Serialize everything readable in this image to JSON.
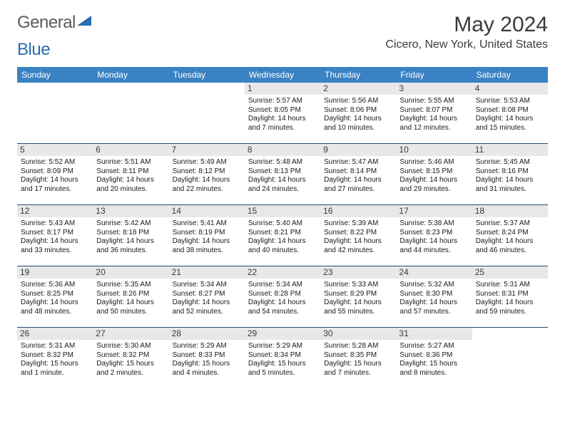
{
  "brand": {
    "text1": "General",
    "text2": "Blue",
    "tri_color": "#2a6db0",
    "text_color": "#5a5a5a"
  },
  "title": "May 2024",
  "location": "Cicero, New York, United States",
  "colors": {
    "header_bg": "#3b82c4",
    "header_text": "#ffffff",
    "daynum_bg": "#e8e8e8",
    "rule": "#2b4a6a",
    "body_text": "#1a1a1a",
    "title_text": "#3a3a3a"
  },
  "dow": [
    "Sunday",
    "Monday",
    "Tuesday",
    "Wednesday",
    "Thursday",
    "Friday",
    "Saturday"
  ],
  "weeks": [
    [
      {
        "n": "",
        "sr": "",
        "ss": "",
        "dl": ""
      },
      {
        "n": "",
        "sr": "",
        "ss": "",
        "dl": ""
      },
      {
        "n": "",
        "sr": "",
        "ss": "",
        "dl": ""
      },
      {
        "n": "1",
        "sr": "Sunrise: 5:57 AM",
        "ss": "Sunset: 8:05 PM",
        "dl": "Daylight: 14 hours and 7 minutes."
      },
      {
        "n": "2",
        "sr": "Sunrise: 5:56 AM",
        "ss": "Sunset: 8:06 PM",
        "dl": "Daylight: 14 hours and 10 minutes."
      },
      {
        "n": "3",
        "sr": "Sunrise: 5:55 AM",
        "ss": "Sunset: 8:07 PM",
        "dl": "Daylight: 14 hours and 12 minutes."
      },
      {
        "n": "4",
        "sr": "Sunrise: 5:53 AM",
        "ss": "Sunset: 8:08 PM",
        "dl": "Daylight: 14 hours and 15 minutes."
      }
    ],
    [
      {
        "n": "5",
        "sr": "Sunrise: 5:52 AM",
        "ss": "Sunset: 8:09 PM",
        "dl": "Daylight: 14 hours and 17 minutes."
      },
      {
        "n": "6",
        "sr": "Sunrise: 5:51 AM",
        "ss": "Sunset: 8:11 PM",
        "dl": "Daylight: 14 hours and 20 minutes."
      },
      {
        "n": "7",
        "sr": "Sunrise: 5:49 AM",
        "ss": "Sunset: 8:12 PM",
        "dl": "Daylight: 14 hours and 22 minutes."
      },
      {
        "n": "8",
        "sr": "Sunrise: 5:48 AM",
        "ss": "Sunset: 8:13 PM",
        "dl": "Daylight: 14 hours and 24 minutes."
      },
      {
        "n": "9",
        "sr": "Sunrise: 5:47 AM",
        "ss": "Sunset: 8:14 PM",
        "dl": "Daylight: 14 hours and 27 minutes."
      },
      {
        "n": "10",
        "sr": "Sunrise: 5:46 AM",
        "ss": "Sunset: 8:15 PM",
        "dl": "Daylight: 14 hours and 29 minutes."
      },
      {
        "n": "11",
        "sr": "Sunrise: 5:45 AM",
        "ss": "Sunset: 8:16 PM",
        "dl": "Daylight: 14 hours and 31 minutes."
      }
    ],
    [
      {
        "n": "12",
        "sr": "Sunrise: 5:43 AM",
        "ss": "Sunset: 8:17 PM",
        "dl": "Daylight: 14 hours and 33 minutes."
      },
      {
        "n": "13",
        "sr": "Sunrise: 5:42 AM",
        "ss": "Sunset: 8:18 PM",
        "dl": "Daylight: 14 hours and 36 minutes."
      },
      {
        "n": "14",
        "sr": "Sunrise: 5:41 AM",
        "ss": "Sunset: 8:19 PM",
        "dl": "Daylight: 14 hours and 38 minutes."
      },
      {
        "n": "15",
        "sr": "Sunrise: 5:40 AM",
        "ss": "Sunset: 8:21 PM",
        "dl": "Daylight: 14 hours and 40 minutes."
      },
      {
        "n": "16",
        "sr": "Sunrise: 5:39 AM",
        "ss": "Sunset: 8:22 PM",
        "dl": "Daylight: 14 hours and 42 minutes."
      },
      {
        "n": "17",
        "sr": "Sunrise: 5:38 AM",
        "ss": "Sunset: 8:23 PM",
        "dl": "Daylight: 14 hours and 44 minutes."
      },
      {
        "n": "18",
        "sr": "Sunrise: 5:37 AM",
        "ss": "Sunset: 8:24 PM",
        "dl": "Daylight: 14 hours and 46 minutes."
      }
    ],
    [
      {
        "n": "19",
        "sr": "Sunrise: 5:36 AM",
        "ss": "Sunset: 8:25 PM",
        "dl": "Daylight: 14 hours and 48 minutes."
      },
      {
        "n": "20",
        "sr": "Sunrise: 5:35 AM",
        "ss": "Sunset: 8:26 PM",
        "dl": "Daylight: 14 hours and 50 minutes."
      },
      {
        "n": "21",
        "sr": "Sunrise: 5:34 AM",
        "ss": "Sunset: 8:27 PM",
        "dl": "Daylight: 14 hours and 52 minutes."
      },
      {
        "n": "22",
        "sr": "Sunrise: 5:34 AM",
        "ss": "Sunset: 8:28 PM",
        "dl": "Daylight: 14 hours and 54 minutes."
      },
      {
        "n": "23",
        "sr": "Sunrise: 5:33 AM",
        "ss": "Sunset: 8:29 PM",
        "dl": "Daylight: 14 hours and 55 minutes."
      },
      {
        "n": "24",
        "sr": "Sunrise: 5:32 AM",
        "ss": "Sunset: 8:30 PM",
        "dl": "Daylight: 14 hours and 57 minutes."
      },
      {
        "n": "25",
        "sr": "Sunrise: 5:31 AM",
        "ss": "Sunset: 8:31 PM",
        "dl": "Daylight: 14 hours and 59 minutes."
      }
    ],
    [
      {
        "n": "26",
        "sr": "Sunrise: 5:31 AM",
        "ss": "Sunset: 8:32 PM",
        "dl": "Daylight: 15 hours and 1 minute."
      },
      {
        "n": "27",
        "sr": "Sunrise: 5:30 AM",
        "ss": "Sunset: 8:32 PM",
        "dl": "Daylight: 15 hours and 2 minutes."
      },
      {
        "n": "28",
        "sr": "Sunrise: 5:29 AM",
        "ss": "Sunset: 8:33 PM",
        "dl": "Daylight: 15 hours and 4 minutes."
      },
      {
        "n": "29",
        "sr": "Sunrise: 5:29 AM",
        "ss": "Sunset: 8:34 PM",
        "dl": "Daylight: 15 hours and 5 minutes."
      },
      {
        "n": "30",
        "sr": "Sunrise: 5:28 AM",
        "ss": "Sunset: 8:35 PM",
        "dl": "Daylight: 15 hours and 7 minutes."
      },
      {
        "n": "31",
        "sr": "Sunrise: 5:27 AM",
        "ss": "Sunset: 8:36 PM",
        "dl": "Daylight: 15 hours and 8 minutes."
      },
      {
        "n": "",
        "sr": "",
        "ss": "",
        "dl": ""
      }
    ]
  ]
}
